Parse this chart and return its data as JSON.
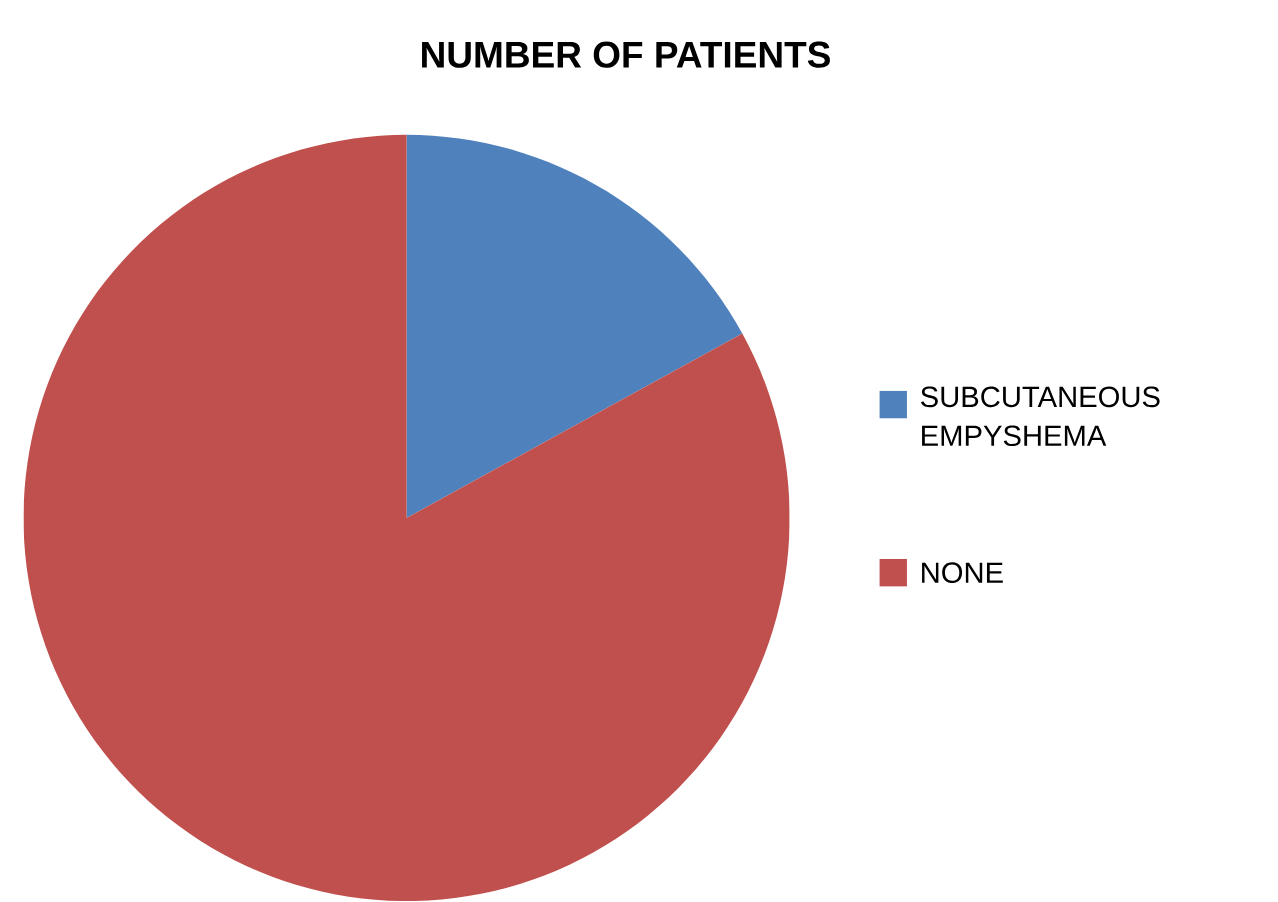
{
  "chart_data": {
    "type": "pie",
    "title": "NUMBER OF PATIENTS",
    "categories": [
      "SUBCUTANEOUS EMPYSHEMA",
      "NONE"
    ],
    "values": [
      17,
      83
    ],
    "colors": [
      "#4f81bd",
      "#c0504d"
    ],
    "legend": "right"
  }
}
